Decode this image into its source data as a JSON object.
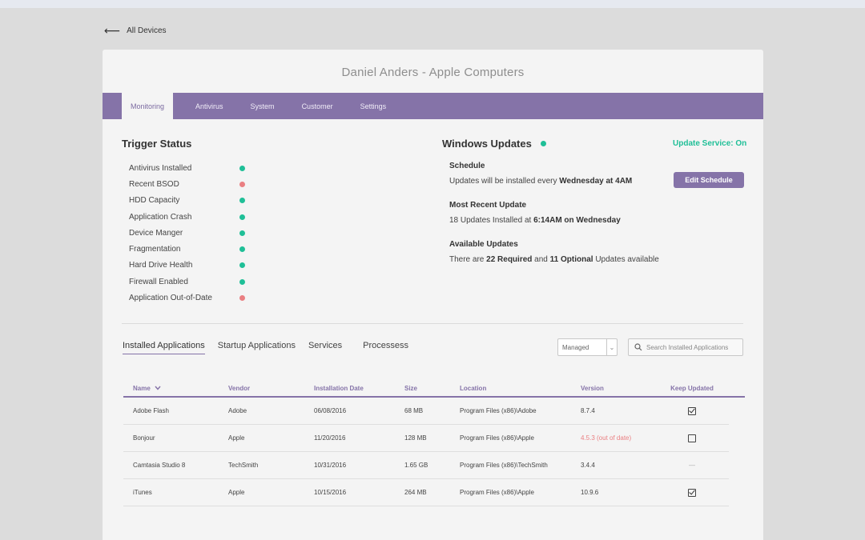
{
  "nav": {
    "back_label": "All Devices"
  },
  "device": {
    "title": "Daniel Anders - Apple Computers"
  },
  "tabs": [
    {
      "label": "Monitoring",
      "active": true
    },
    {
      "label": "Antivirus"
    },
    {
      "label": "System"
    },
    {
      "label": "Customer"
    },
    {
      "label": "Settings"
    }
  ],
  "trigger_status": {
    "title": "Trigger Status",
    "items": [
      {
        "name": "Antivirus Installed",
        "status": "ok"
      },
      {
        "name": "Recent BSOD",
        "status": "bad"
      },
      {
        "name": "HDD Capacity",
        "status": "ok"
      },
      {
        "name": "Application Crash",
        "status": "ok"
      },
      {
        "name": "Device Manger",
        "status": "ok"
      },
      {
        "name": "Fragmentation",
        "status": "ok"
      },
      {
        "name": "Hard Drive Health",
        "status": "ok"
      },
      {
        "name": "Firewall Enabled",
        "status": "ok"
      },
      {
        "name": "Application Out-of-Date",
        "status": "bad"
      }
    ]
  },
  "windows_updates": {
    "title": "Windows Updates",
    "service_status": "Update Service: On",
    "schedule": {
      "heading": "Schedule",
      "prefix": "Updates will be installed every ",
      "bold": "Wednesday at 4AM"
    },
    "edit_button": "Edit Schedule",
    "recent": {
      "heading": "Most Recent Update",
      "prefix": "18 Updates Installed at ",
      "bold": "6:14AM on Wednesday"
    },
    "available": {
      "heading": "Available Updates",
      "p1": "There are ",
      "b1": "22 Required",
      "p2": " and ",
      "b2": "11 Optional",
      "p3": " Updates available"
    }
  },
  "app_tabs": [
    {
      "label": "Installed Applications",
      "active": true
    },
    {
      "label": "Startup Applications"
    },
    {
      "label": "Services"
    },
    {
      "label": "Processess"
    }
  ],
  "filter": {
    "value": "Managed"
  },
  "search": {
    "placeholder": "Search Installed Applications"
  },
  "table": {
    "headers": [
      "Name",
      "Vendor",
      "Installation Date",
      "Size",
      "Location",
      "Version",
      "Keep Updated"
    ],
    "rows": [
      {
        "name": "Adobe Flash",
        "vendor": "Adobe",
        "date": "06/08/2016",
        "size": "68 MB",
        "location": "Program Files (x86)\\Adobe",
        "version": "8.7.4",
        "outdated": false,
        "keep": "checked"
      },
      {
        "name": "Bonjour",
        "vendor": "Apple",
        "date": "11/20/2016",
        "size": "128 MB",
        "location": "Program Files (x86)\\Apple",
        "version": "4.5.3 (out of date)",
        "outdated": true,
        "keep": "unchecked"
      },
      {
        "name": "Camtasia Studio 8",
        "vendor": "TechSmith",
        "date": "10/31/2016",
        "size": "1.65 GB",
        "location": "Program Files (x86)\\TechSmith",
        "version": "3.4.4",
        "outdated": false,
        "keep": "none"
      },
      {
        "name": "iTunes",
        "vendor": "Apple",
        "date": "10/15/2016",
        "size": "264 MB",
        "location": "Program Files (x86)\\Apple",
        "version": "10.9.6",
        "outdated": false,
        "keep": "checked"
      }
    ]
  },
  "colors": {
    "accent": "#8573a8",
    "ok": "#1fbf97",
    "bad": "#ea7f82"
  }
}
